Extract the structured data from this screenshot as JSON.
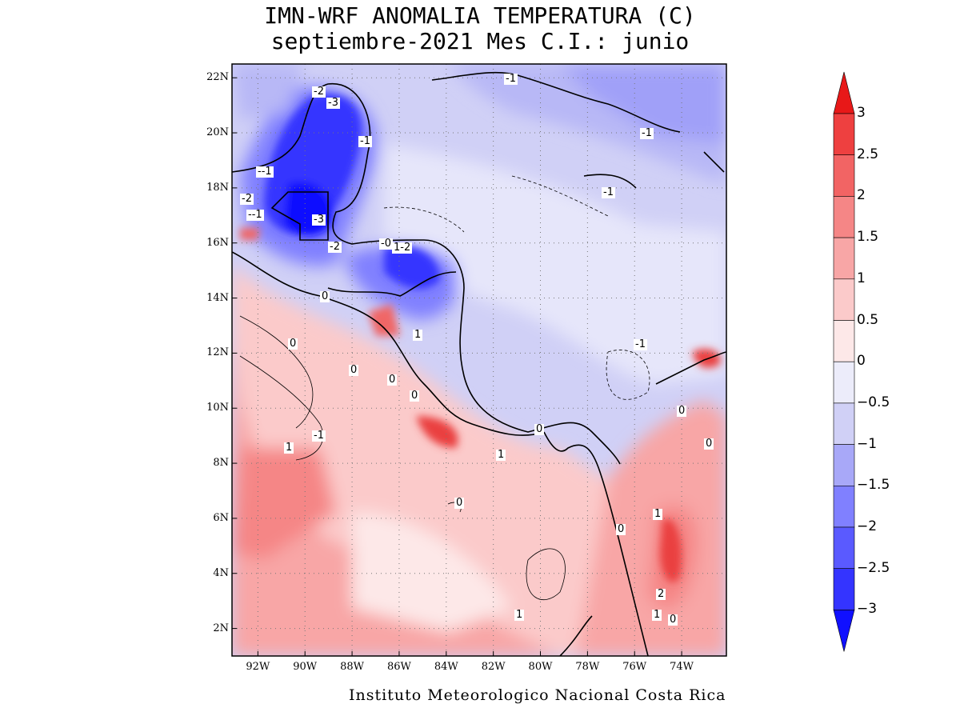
{
  "title": {
    "line1": "IMN-WRF  ANOMALIA TEMPERATURA (C)",
    "line2": "septiembre-2021 Mes C.I.: junio"
  },
  "credit": "Instituto Meteorologico Nacional Costa Rica",
  "map": {
    "lat_range": [
      1,
      22.5
    ],
    "lon_range": [
      -93.1,
      -72.1
    ],
    "lat_ticks": [
      "22N",
      "20N",
      "18N",
      "16N",
      "14N",
      "12N",
      "10N",
      "8N",
      "6N",
      "4N",
      "2N"
    ],
    "lon_ticks": [
      "92W",
      "90W",
      "88W",
      "86W",
      "84W",
      "82W",
      "80W",
      "78W",
      "76W",
      "74W"
    ],
    "contour_labels": [
      "-2",
      "-3",
      "-1",
      "--1",
      "-2",
      "--1",
      "-3",
      "-2",
      "-0",
      "1-2",
      "0",
      "0",
      "0",
      "-1",
      "1",
      "0",
      "0",
      "1",
      "1",
      "0",
      "0",
      "0",
      "0",
      "1",
      "0",
      "2",
      "1",
      "0",
      "1",
      "-1",
      "-1",
      "-1",
      "-1"
    ],
    "colors": {
      "neg3": "#1010ff",
      "neg25": "#3434ff",
      "neg2": "#5a5aff",
      "neg15": "#8080ff",
      "neg1": "#a8a8f8",
      "neg05": "#cfcff6",
      "zero_neg": "#ececfa",
      "zero_pos": "#fde8e8",
      "pos05": "#fbc8c8",
      "pos1": "#f8a8a8",
      "pos15": "#f58888",
      "pos2": "#f06666",
      "pos25": "#ea3f3f",
      "pos3": "#e21a1a"
    }
  },
  "colorbar": {
    "ticks": [
      "3",
      "2.5",
      "2",
      "1.5",
      "1",
      "0.5",
      "0",
      "−0.5",
      "−1",
      "−1.5",
      "−2",
      "−2.5",
      "−3"
    ],
    "colors": [
      "#e81818",
      "#ee4040",
      "#f26464",
      "#f58686",
      "#f8a6a6",
      "#fbcaca",
      "#fde8e8",
      "#ececfa",
      "#d0d0f6",
      "#a8a8f8",
      "#8080ff",
      "#5a5aff",
      "#3434ff",
      "#1010ff"
    ]
  }
}
